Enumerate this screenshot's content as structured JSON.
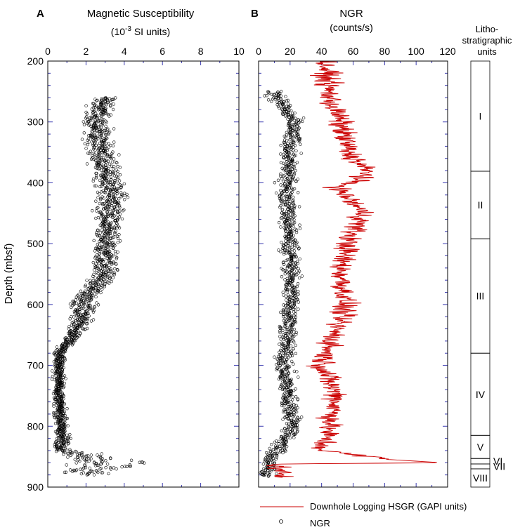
{
  "chart_data": [
    {
      "panel_letter": "A",
      "type": "scatter",
      "title_line1": "Magnetic Susceptibility",
      "title_line2_pre": "(10",
      "title_line2_sup": "-3",
      "title_line2_post": " SI units)",
      "ylabel": "Depth (mbsf)",
      "xlim": [
        0,
        10
      ],
      "ylim": [
        200,
        900
      ],
      "y_inverted": true,
      "x_ticks": [
        0,
        2,
        4,
        6,
        8,
        10
      ],
      "y_ticks": [
        200,
        300,
        400,
        500,
        600,
        700,
        800,
        900
      ],
      "marker": "open-circle",
      "trend_profile": [
        {
          "depth": 250,
          "center": 3.1,
          "spread": 1.2
        },
        {
          "depth": 300,
          "center": 2.5,
          "spread": 1.0
        },
        {
          "depth": 380,
          "center": 3.0,
          "spread": 1.1
        },
        {
          "depth": 420,
          "center": 3.4,
          "spread": 1.3
        },
        {
          "depth": 480,
          "center": 3.0,
          "spread": 1.0
        },
        {
          "depth": 550,
          "center": 3.0,
          "spread": 1.0
        },
        {
          "depth": 590,
          "center": 2.0,
          "spread": 1.0
        },
        {
          "depth": 640,
          "center": 1.6,
          "spread": 0.8
        },
        {
          "depth": 680,
          "center": 0.6,
          "spread": 0.5
        },
        {
          "depth": 760,
          "center": 0.6,
          "spread": 0.4
        },
        {
          "depth": 840,
          "center": 0.8,
          "spread": 0.7
        },
        {
          "depth": 860,
          "center": 3.5,
          "spread": 3.5
        },
        {
          "depth": 880,
          "center": 1.5,
          "spread": 2.0
        }
      ]
    },
    {
      "panel_letter": "B",
      "type": "line+scatter",
      "title_line1": "NGR",
      "title_line2": "(counts/s)",
      "xlim": [
        0,
        120
      ],
      "ylim": [
        200,
        900
      ],
      "y_inverted": true,
      "x_ticks": [
        0,
        20,
        40,
        60,
        80,
        100,
        120
      ],
      "y_ticks": [
        200,
        300,
        400,
        500,
        600,
        700,
        800,
        900
      ],
      "series": [
        {
          "name": "Downhole Logging HSGR (GAPI units)",
          "style": "line",
          "color": "#cc0000",
          "profile": [
            {
              "depth": 200,
              "value": 42
            },
            {
              "depth": 260,
              "value": 45
            },
            {
              "depth": 300,
              "value": 52
            },
            {
              "depth": 350,
              "value": 57
            },
            {
              "depth": 385,
              "value": 70
            },
            {
              "depth": 410,
              "value": 50
            },
            {
              "depth": 450,
              "value": 67
            },
            {
              "depth": 490,
              "value": 58
            },
            {
              "depth": 540,
              "value": 52
            },
            {
              "depth": 600,
              "value": 55
            },
            {
              "depth": 650,
              "value": 48
            },
            {
              "depth": 700,
              "value": 40
            },
            {
              "depth": 750,
              "value": 50
            },
            {
              "depth": 800,
              "value": 45
            },
            {
              "depth": 840,
              "value": 40
            },
            {
              "depth": 855,
              "value": 85
            },
            {
              "depth": 860,
              "value": 117
            },
            {
              "depth": 862,
              "value": 12
            },
            {
              "depth": 880,
              "value": 15
            }
          ]
        },
        {
          "name": "NGR",
          "style": "open-circle",
          "color": "#000000",
          "profile": [
            {
              "depth": 250,
              "value": 10
            },
            {
              "depth": 300,
              "value": 22
            },
            {
              "depth": 400,
              "value": 18
            },
            {
              "depth": 500,
              "value": 20
            },
            {
              "depth": 600,
              "value": 21
            },
            {
              "depth": 700,
              "value": 16
            },
            {
              "depth": 800,
              "value": 22
            },
            {
              "depth": 860,
              "value": 6
            },
            {
              "depth": 880,
              "value": 5
            }
          ]
        }
      ]
    }
  ],
  "lithology": {
    "header_line1": "Litho-",
    "header_line2": "stratigraphic",
    "header_line3": "units",
    "units": [
      {
        "name": "I",
        "top": 200,
        "bottom": 381
      },
      {
        "name": "II",
        "top": 381,
        "bottom": 492
      },
      {
        "name": "III",
        "top": 492,
        "bottom": 680
      },
      {
        "name": "IV",
        "top": 680,
        "bottom": 815
      },
      {
        "name": "V",
        "top": 815,
        "bottom": 853
      },
      {
        "name": "VI",
        "top": 853,
        "bottom": 862
      },
      {
        "name": "VII",
        "top": 862,
        "bottom": 870
      },
      {
        "name": "VIII",
        "top": 870,
        "bottom": 900
      }
    ]
  },
  "legend": {
    "line_label": "Downhole Logging HSGR (GAPI units)",
    "marker_label": "NGR"
  }
}
